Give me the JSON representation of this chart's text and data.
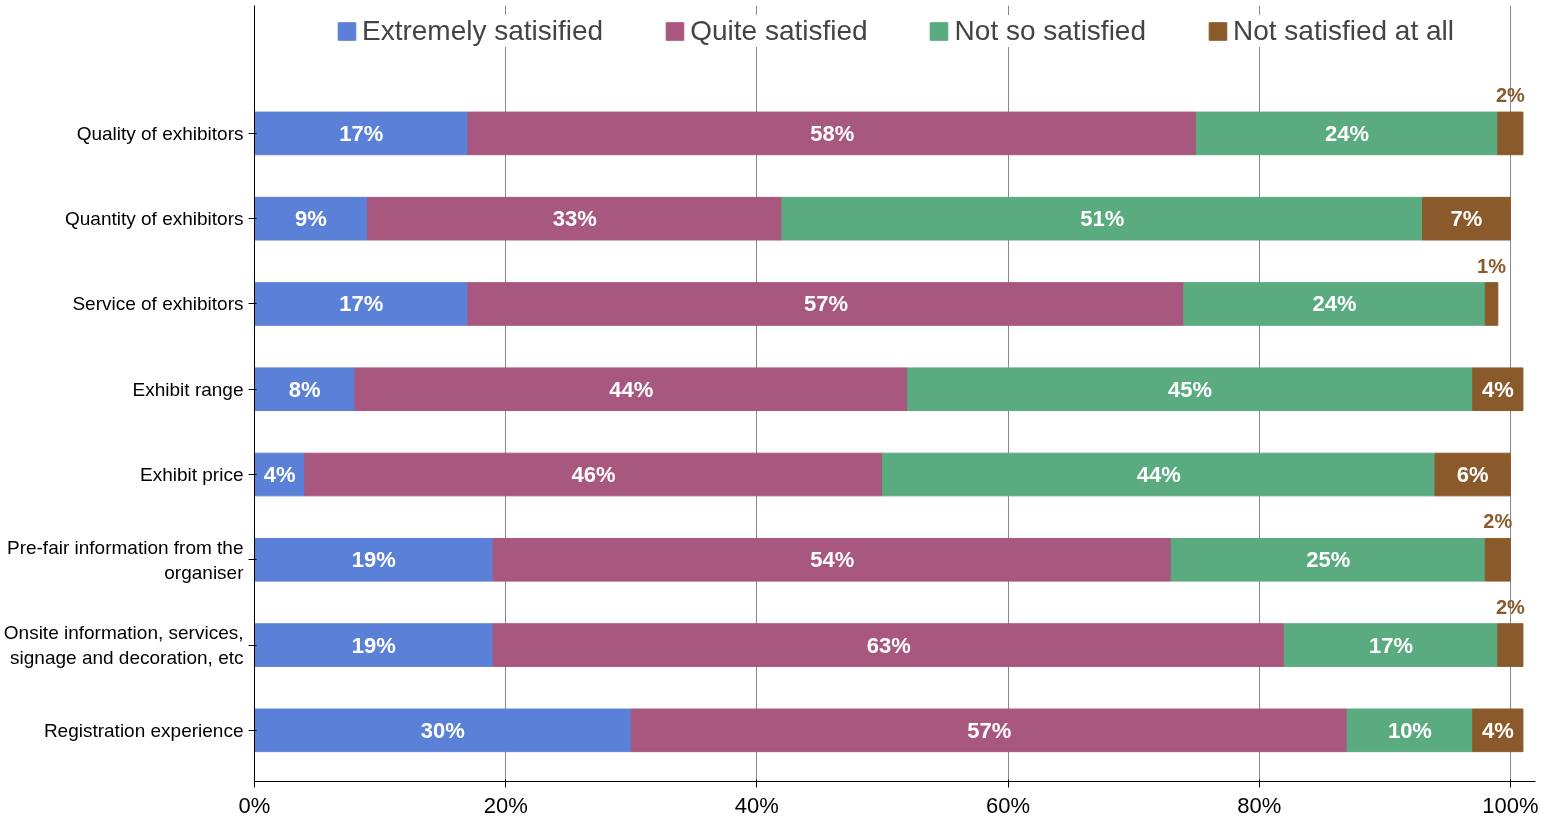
{
  "chart_data": {
    "type": "bar",
    "orientation": "horizontal",
    "stacked": true,
    "categories": [
      "Quality of exhibitors",
      "Quantity of exhibitors",
      "Service of exhibitors",
      "Exhibit range",
      "Exhibit price",
      "Pre-fair information from the\norganiser",
      "Onsite information, services,\nsignage and decoration, etc",
      "Registration experience"
    ],
    "series": [
      {
        "name": "Extremely satisified",
        "color": "#5b80d8",
        "values": [
          17,
          9,
          17,
          8,
          4,
          19,
          19,
          30
        ],
        "value_labels": [
          "17%",
          "9%",
          "17%",
          "8%",
          "4%",
          "19%",
          "19%",
          "30%"
        ]
      },
      {
        "name": "Quite satisfied",
        "color": "#a8577e",
        "values": [
          58,
          33,
          57,
          44,
          46,
          54,
          63,
          57
        ],
        "value_labels": [
          "58%",
          "33%",
          "57%",
          "44%",
          "46%",
          "54%",
          "63%",
          "57%"
        ]
      },
      {
        "name": "Not so satisfied",
        "color": "#5aab80",
        "values": [
          24,
          51,
          24,
          45,
          44,
          25,
          17,
          10
        ],
        "value_labels": [
          "24%",
          "51%",
          "24%",
          "45%",
          "44%",
          "25%",
          "17%",
          "10%"
        ]
      },
      {
        "name": "Not satisfied at all",
        "color": "#8b5a2b",
        "values": [
          2,
          7,
          1,
          4,
          6,
          2,
          2,
          4
        ],
        "value_labels": [
          "2%",
          "7%",
          "1%",
          "4%",
          "6%",
          "2%",
          "2%",
          "4%"
        ]
      }
    ],
    "xlim": [
      0,
      102
    ],
    "xticks": [
      {
        "value": 0,
        "label": "0%"
      },
      {
        "value": 20,
        "label": "20%"
      },
      {
        "value": 40,
        "label": "40%"
      },
      {
        "value": 60,
        "label": "60%"
      },
      {
        "value": 80,
        "label": "80%"
      },
      {
        "value": 100,
        "label": "100%"
      }
    ],
    "grid": "x",
    "legend": "top"
  }
}
